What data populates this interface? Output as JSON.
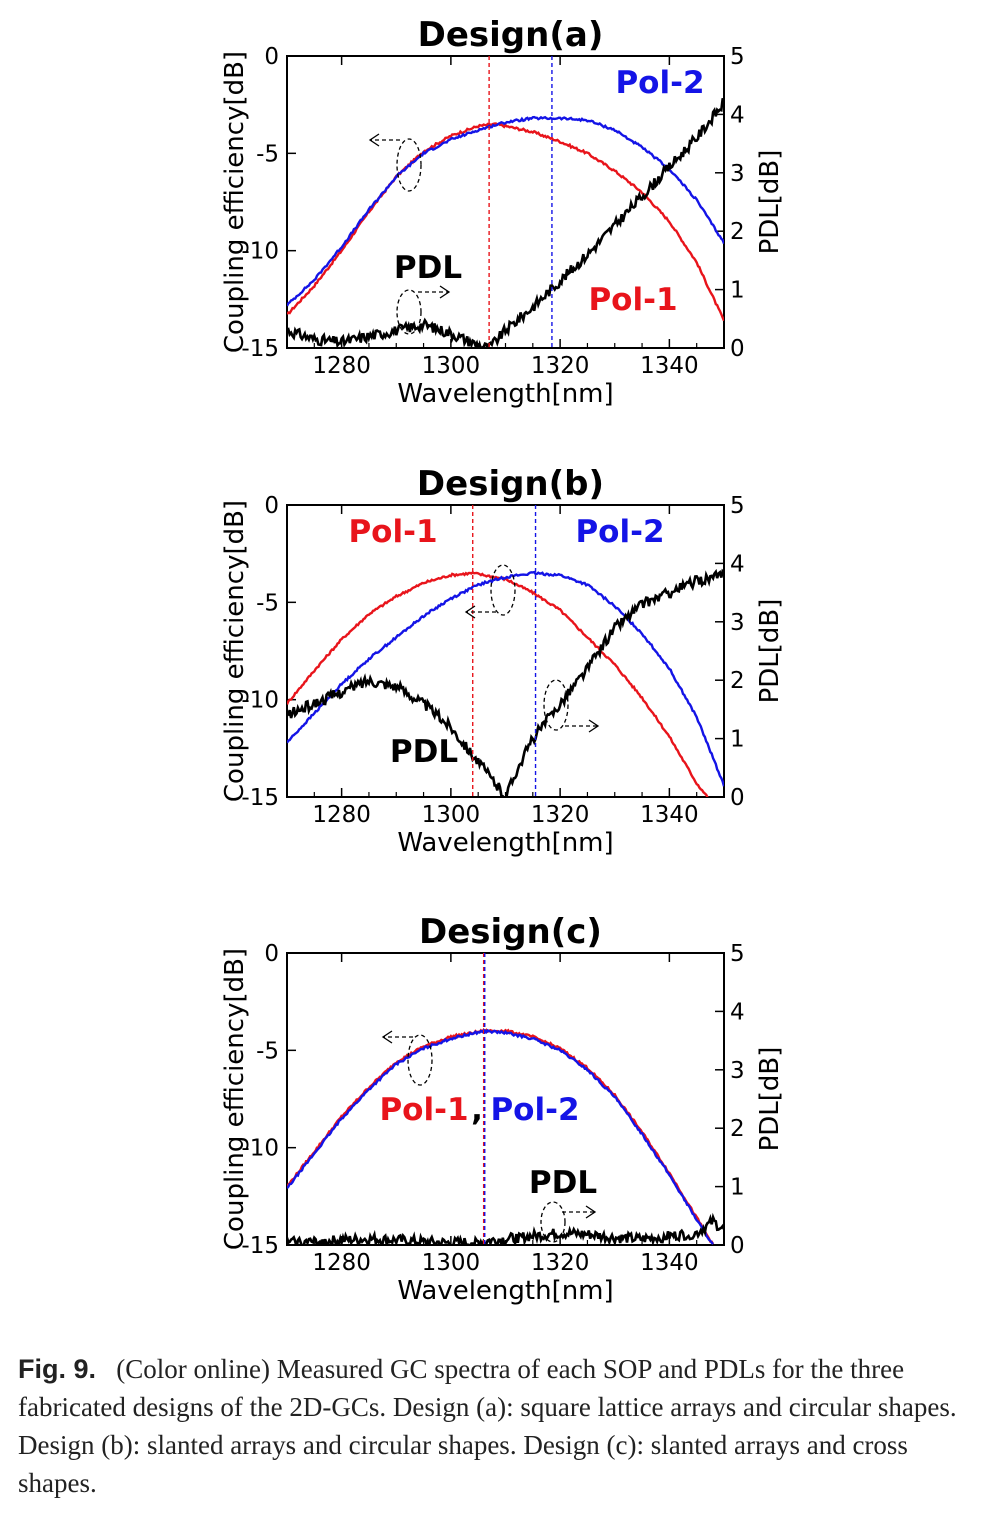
{
  "caption": {
    "label": "Fig. 9.",
    "text": "(Color online) Measured GC spectra of each SOP and PDLs for the three fabricated designs of the 2D-GCs. Design (a): square lattice arrays and circular shapes. Design (b): slanted arrays and circular shapes. Design (c): slanted arrays and cross shapes."
  },
  "colors": {
    "pol1": "#e8141b",
    "pol2": "#1414e6",
    "pdl": "#000000"
  },
  "chart_data": [
    {
      "type": "line",
      "title": "Design(a)",
      "xlabel": "Wavelength[nm]",
      "ylabel": "Coupling efficiency[dB]",
      "y2label": "PDL[dB]",
      "xlim": [
        1270,
        1350
      ],
      "ylim": [
        -15,
        0
      ],
      "y2lim": [
        0,
        5
      ],
      "xticks": [
        1280,
        1300,
        1320,
        1340
      ],
      "yticks": [
        0,
        -5,
        -10,
        -15
      ],
      "y2ticks": [
        0,
        1,
        2,
        3,
        4,
        5
      ],
      "grid": false,
      "series": [
        {
          "name": "Pol-1",
          "axis": "left",
          "x": [
            1270,
            1275,
            1280,
            1285,
            1290,
            1295,
            1300,
            1305,
            1308,
            1310,
            1315,
            1320,
            1325,
            1330,
            1335,
            1340,
            1345,
            1350
          ],
          "y": [
            -13.3,
            -11.8,
            -10.0,
            -8.0,
            -6.2,
            -4.9,
            -4.1,
            -3.6,
            -3.5,
            -3.6,
            -3.9,
            -4.4,
            -5.0,
            -5.9,
            -7.0,
            -8.5,
            -10.6,
            -13.6
          ]
        },
        {
          "name": "Pol-2",
          "axis": "left",
          "x": [
            1270,
            1275,
            1280,
            1285,
            1290,
            1295,
            1300,
            1305,
            1310,
            1315,
            1320,
            1325,
            1330,
            1335,
            1340,
            1345,
            1350
          ],
          "y": [
            -12.8,
            -11.5,
            -9.8,
            -7.9,
            -6.2,
            -5.0,
            -4.3,
            -3.8,
            -3.4,
            -3.2,
            -3.2,
            -3.3,
            -3.8,
            -4.7,
            -5.8,
            -7.4,
            -9.6
          ]
        },
        {
          "name": "PDL",
          "axis": "right",
          "x": [
            1270,
            1275,
            1280,
            1285,
            1290,
            1295,
            1300,
            1305,
            1307,
            1310,
            1315,
            1320,
            1325,
            1330,
            1335,
            1340,
            1345,
            1350
          ],
          "y": [
            0.3,
            0.15,
            0.1,
            0.2,
            0.3,
            0.4,
            0.25,
            0.05,
            0.0,
            0.3,
            0.7,
            1.15,
            1.6,
            2.1,
            2.6,
            3.1,
            3.6,
            4.2
          ]
        }
      ],
      "markers": [
        {
          "x": 1307,
          "color": "pol1"
        },
        {
          "x": 1318.5,
          "color": "pol2"
        }
      ],
      "annotations": [
        "Pol-1",
        "Pol-2",
        "PDL"
      ]
    },
    {
      "type": "line",
      "title": "Design(b)",
      "xlabel": "Wavelength[nm]",
      "ylabel": "Coupling efficiency[dB]",
      "y2label": "PDL[dB]",
      "xlim": [
        1270,
        1350
      ],
      "ylim": [
        -15,
        0
      ],
      "y2lim": [
        0,
        5
      ],
      "xticks": [
        1280,
        1300,
        1320,
        1340
      ],
      "yticks": [
        0,
        -5,
        -10,
        -15
      ],
      "y2ticks": [
        0,
        1,
        2,
        3,
        4,
        5
      ],
      "grid": false,
      "series": [
        {
          "name": "Pol-1",
          "axis": "left",
          "x": [
            1270,
            1275,
            1280,
            1285,
            1290,
            1295,
            1300,
            1304,
            1310,
            1315,
            1320,
            1325,
            1330,
            1335,
            1340,
            1345,
            1347
          ],
          "y": [
            -10.2,
            -8.5,
            -6.9,
            -5.6,
            -4.7,
            -4.0,
            -3.6,
            -3.5,
            -3.8,
            -4.5,
            -5.4,
            -6.8,
            -8.2,
            -9.9,
            -11.9,
            -14.3,
            -15.0
          ]
        },
        {
          "name": "Pol-2",
          "axis": "left",
          "x": [
            1270,
            1275,
            1280,
            1285,
            1290,
            1295,
            1300,
            1305,
            1310,
            1315,
            1320,
            1325,
            1330,
            1335,
            1340,
            1345,
            1350
          ],
          "y": [
            -12.2,
            -10.7,
            -9.2,
            -7.9,
            -6.8,
            -5.7,
            -4.8,
            -4.1,
            -3.7,
            -3.5,
            -3.6,
            -4.1,
            -5.2,
            -6.6,
            -8.4,
            -10.9,
            -14.4
          ]
        },
        {
          "name": "PDL",
          "axis": "right",
          "x": [
            1270,
            1275,
            1280,
            1285,
            1290,
            1295,
            1300,
            1305,
            1308,
            1310,
            1312,
            1315,
            1320,
            1325,
            1330,
            1335,
            1340,
            1345,
            1350
          ],
          "y": [
            1.4,
            1.6,
            1.8,
            2.0,
            1.9,
            1.6,
            1.2,
            0.6,
            0.25,
            0.0,
            0.45,
            1.0,
            1.6,
            2.2,
            2.9,
            3.3,
            3.5,
            3.7,
            3.8
          ]
        }
      ],
      "markers": [
        {
          "x": 1304,
          "color": "pol1"
        },
        {
          "x": 1315.5,
          "color": "pol2"
        }
      ],
      "annotations": [
        "Pol-1",
        "Pol-2",
        "PDL"
      ]
    },
    {
      "type": "line",
      "title": "Design(c)",
      "xlabel": "Wavelength[nm]",
      "ylabel": "Coupling efficiency[dB]",
      "y2label": "PDL[dB]",
      "xlim": [
        1270,
        1350
      ],
      "ylim": [
        -15,
        0
      ],
      "y2lim": [
        0,
        5
      ],
      "xticks": [
        1280,
        1300,
        1320,
        1340
      ],
      "yticks": [
        0,
        -5,
        -10,
        -15
      ],
      "y2ticks": [
        0,
        1,
        2,
        3,
        4,
        5
      ],
      "grid": false,
      "series": [
        {
          "name": "Pol-1",
          "axis": "left",
          "x": [
            1270,
            1275,
            1280,
            1285,
            1290,
            1295,
            1300,
            1306,
            1310,
            1315,
            1320,
            1325,
            1330,
            1335,
            1340,
            1345,
            1348
          ],
          "y": [
            -12.0,
            -10.2,
            -8.4,
            -6.9,
            -5.6,
            -4.8,
            -4.3,
            -4.0,
            -4.0,
            -4.3,
            -4.9,
            -5.9,
            -7.3,
            -9.2,
            -11.3,
            -13.6,
            -15.0
          ]
        },
        {
          "name": "Pol-2",
          "axis": "left",
          "x": [
            1270,
            1275,
            1280,
            1285,
            1290,
            1295,
            1300,
            1306,
            1310,
            1315,
            1320,
            1325,
            1330,
            1335,
            1340,
            1345,
            1348
          ],
          "y": [
            -12.1,
            -10.3,
            -8.5,
            -7.0,
            -5.7,
            -4.9,
            -4.4,
            -4.0,
            -4.1,
            -4.4,
            -5.0,
            -6.0,
            -7.4,
            -9.3,
            -11.4,
            -13.7,
            -15.0
          ]
        },
        {
          "name": "PDL",
          "axis": "right",
          "x": [
            1270,
            1275,
            1280,
            1285,
            1290,
            1295,
            1300,
            1305,
            1310,
            1315,
            1320,
            1325,
            1330,
            1335,
            1340,
            1345,
            1348,
            1350
          ],
          "y": [
            0.05,
            0.05,
            0.08,
            0.1,
            0.08,
            0.05,
            0.03,
            0.05,
            0.1,
            0.15,
            0.2,
            0.18,
            0.12,
            0.1,
            0.15,
            0.2,
            0.4,
            0.25
          ]
        }
      ],
      "markers": [
        {
          "x": 1306,
          "color": "pol1"
        },
        {
          "x": 1306.2,
          "color": "pol2"
        }
      ],
      "annotations": [
        "Pol-1",
        ",",
        "Pol-2",
        "PDL"
      ]
    }
  ]
}
